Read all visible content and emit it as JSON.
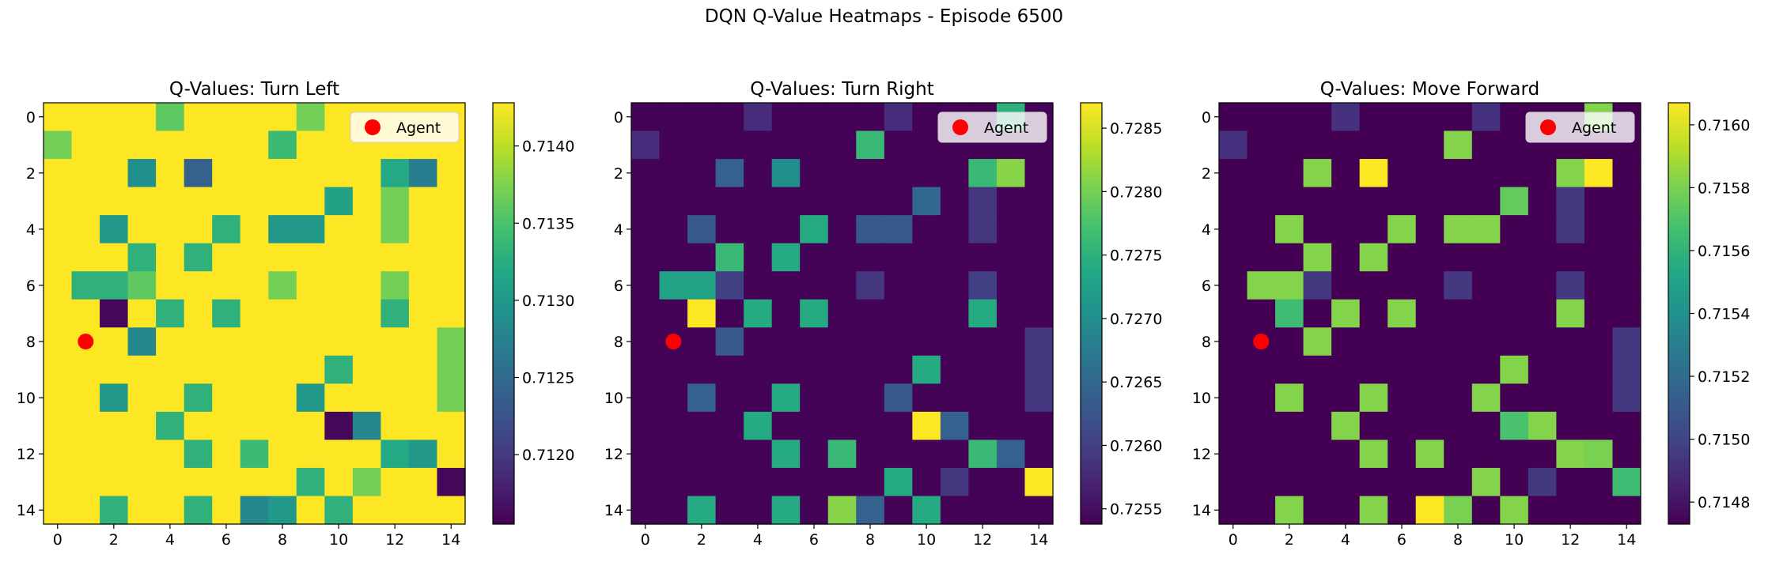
{
  "figure": {
    "suptitle": "DQN Q-Value Heatmaps - Episode 6500"
  },
  "legend": {
    "label": "Agent",
    "marker_color": "#ff0000"
  },
  "agent": {
    "x": 1,
    "y": 8
  },
  "chart_data": [
    {
      "type": "heatmap",
      "title": "Q-Values: Turn Left",
      "xlabel": "",
      "ylabel": "",
      "x_ticks": [
        0,
        2,
        4,
        6,
        8,
        10,
        12,
        14
      ],
      "y_ticks": [
        0,
        2,
        4,
        6,
        8,
        10,
        12,
        14
      ],
      "colormap": "viridis",
      "vmin": 0.71155,
      "vmax": 0.71428,
      "colorbar_ticks": [
        0.714,
        0.7135,
        0.713,
        0.7125,
        0.712
      ],
      "colorbar_tick_labels": [
        "0.7140",
        "0.7135",
        "0.7130",
        "0.7125",
        "0.7120"
      ],
      "legend_position": "upper right",
      "grid": false,
      "values": [
        [
          0.7143,
          0.7143,
          0.7143,
          0.7143,
          0.7136,
          0.7143,
          0.7143,
          0.7143,
          0.7143,
          0.7137,
          0.7143,
          0.7143,
          0.7143,
          0.7143,
          0.7143
        ],
        [
          0.7137,
          0.7143,
          0.7143,
          0.7143,
          0.7143,
          0.7143,
          0.7143,
          0.7143,
          0.7134,
          0.7143,
          0.7143,
          0.7143,
          0.7143,
          0.7143,
          0.7143
        ],
        [
          0.7143,
          0.7143,
          0.7143,
          0.7129,
          0.7143,
          0.7124,
          0.7143,
          0.7143,
          0.7143,
          0.7143,
          0.7143,
          0.7143,
          0.7132,
          0.7127,
          0.7143
        ],
        [
          0.7143,
          0.7143,
          0.7143,
          0.7143,
          0.7143,
          0.7143,
          0.7143,
          0.7143,
          0.7143,
          0.7143,
          0.7131,
          0.7143,
          0.7137,
          0.7143,
          0.7143
        ],
        [
          0.7143,
          0.7143,
          0.713,
          0.7143,
          0.7143,
          0.7143,
          0.7133,
          0.7143,
          0.713,
          0.713,
          0.7143,
          0.7143,
          0.7137,
          0.7143,
          0.7143
        ],
        [
          0.7143,
          0.7143,
          0.7143,
          0.7133,
          0.7143,
          0.7133,
          0.7143,
          0.7143,
          0.7143,
          0.7143,
          0.7143,
          0.7143,
          0.7143,
          0.7143,
          0.7143
        ],
        [
          0.7143,
          0.7133,
          0.7133,
          0.7136,
          0.7143,
          0.7143,
          0.7143,
          0.7143,
          0.7137,
          0.7143,
          0.7143,
          0.7143,
          0.7137,
          0.7143,
          0.7143
        ],
        [
          0.7143,
          0.7143,
          0.7116,
          0.7143,
          0.7133,
          0.7143,
          0.7133,
          0.7143,
          0.7143,
          0.7143,
          0.7143,
          0.7143,
          0.7133,
          0.7143,
          0.7143
        ],
        [
          0.7143,
          0.7143,
          0.7143,
          0.7128,
          0.7143,
          0.7143,
          0.7143,
          0.7143,
          0.7143,
          0.7143,
          0.7143,
          0.7143,
          0.7143,
          0.7143,
          0.7137
        ],
        [
          0.7143,
          0.7143,
          0.7143,
          0.7143,
          0.7143,
          0.7143,
          0.7143,
          0.7143,
          0.7143,
          0.7143,
          0.7133,
          0.7143,
          0.7143,
          0.7143,
          0.7137
        ],
        [
          0.7143,
          0.7143,
          0.713,
          0.7143,
          0.7143,
          0.7133,
          0.7143,
          0.7143,
          0.7143,
          0.713,
          0.7143,
          0.7143,
          0.7143,
          0.7143,
          0.7137
        ],
        [
          0.7143,
          0.7143,
          0.7143,
          0.7143,
          0.7133,
          0.7143,
          0.7143,
          0.7143,
          0.7143,
          0.7143,
          0.7116,
          0.7128,
          0.7143,
          0.7143,
          0.7143
        ],
        [
          0.7143,
          0.7143,
          0.7143,
          0.7143,
          0.7143,
          0.7133,
          0.7143,
          0.7134,
          0.7143,
          0.7143,
          0.7143,
          0.7143,
          0.7132,
          0.713,
          0.7143
        ],
        [
          0.7143,
          0.7143,
          0.7143,
          0.7143,
          0.7143,
          0.7143,
          0.7143,
          0.7143,
          0.7143,
          0.7133,
          0.7143,
          0.7137,
          0.7143,
          0.7143,
          0.7116
        ],
        [
          0.7143,
          0.7143,
          0.7133,
          0.7143,
          0.7143,
          0.7133,
          0.7143,
          0.7128,
          0.713,
          0.7143,
          0.7133,
          0.7143,
          0.7143,
          0.7143,
          0.7143
        ]
      ]
    },
    {
      "type": "heatmap",
      "title": "Q-Values: Turn Right",
      "xlabel": "",
      "ylabel": "",
      "x_ticks": [
        0,
        2,
        4,
        6,
        8,
        10,
        12,
        14
      ],
      "y_ticks": [
        0,
        2,
        4,
        6,
        8,
        10,
        12,
        14
      ],
      "colormap": "viridis",
      "vmin": 0.72538,
      "vmax": 0.7287,
      "colorbar_ticks": [
        0.7285,
        0.728,
        0.7275,
        0.727,
        0.7265,
        0.726,
        0.7255
      ],
      "colorbar_tick_labels": [
        "0.7285",
        "0.7280",
        "0.7275",
        "0.7270",
        "0.7265",
        "0.7260",
        "0.7255"
      ],
      "legend_position": "upper right",
      "grid": false,
      "values": [
        [
          0.7254,
          0.7254,
          0.7254,
          0.7254,
          0.7258,
          0.7254,
          0.7254,
          0.7254,
          0.7254,
          0.7258,
          0.7254,
          0.7254,
          0.7254,
          0.7275,
          0.7254
        ],
        [
          0.7258,
          0.7254,
          0.7254,
          0.7254,
          0.7254,
          0.7254,
          0.7254,
          0.7254,
          0.7276,
          0.7254,
          0.7254,
          0.7254,
          0.7254,
          0.7254,
          0.7254
        ],
        [
          0.7254,
          0.7254,
          0.7254,
          0.7264,
          0.7254,
          0.727,
          0.7254,
          0.7254,
          0.7254,
          0.7254,
          0.7254,
          0.7254,
          0.7276,
          0.7281,
          0.7254
        ],
        [
          0.7254,
          0.7254,
          0.7254,
          0.7254,
          0.7254,
          0.7254,
          0.7254,
          0.7254,
          0.7254,
          0.7254,
          0.7265,
          0.7254,
          0.7259,
          0.7254,
          0.7254
        ],
        [
          0.7254,
          0.7254,
          0.7263,
          0.7254,
          0.7254,
          0.7254,
          0.7274,
          0.7254,
          0.7263,
          0.7263,
          0.7254,
          0.7254,
          0.7259,
          0.7254,
          0.7254
        ],
        [
          0.7254,
          0.7254,
          0.7254,
          0.7276,
          0.7254,
          0.7274,
          0.7254,
          0.7254,
          0.7254,
          0.7254,
          0.7254,
          0.7254,
          0.7254,
          0.7254,
          0.7254
        ],
        [
          0.7254,
          0.7273,
          0.7273,
          0.726,
          0.7254,
          0.7254,
          0.7254,
          0.7254,
          0.7259,
          0.7254,
          0.7254,
          0.7254,
          0.726,
          0.7254,
          0.7254
        ],
        [
          0.7254,
          0.7254,
          0.7287,
          0.7254,
          0.7274,
          0.7254,
          0.7274,
          0.7254,
          0.7254,
          0.7254,
          0.7254,
          0.7254,
          0.7274,
          0.7254,
          0.7254
        ],
        [
          0.7254,
          0.7254,
          0.7254,
          0.7263,
          0.7254,
          0.7254,
          0.7254,
          0.7254,
          0.7254,
          0.7254,
          0.7254,
          0.7254,
          0.7254,
          0.7254,
          0.7259
        ],
        [
          0.7254,
          0.7254,
          0.7254,
          0.7254,
          0.7254,
          0.7254,
          0.7254,
          0.7254,
          0.7254,
          0.7254,
          0.7274,
          0.7254,
          0.7254,
          0.7254,
          0.7259
        ],
        [
          0.7254,
          0.7254,
          0.7264,
          0.7254,
          0.7254,
          0.7274,
          0.7254,
          0.7254,
          0.7254,
          0.7263,
          0.7254,
          0.7254,
          0.7254,
          0.7254,
          0.7259
        ],
        [
          0.7254,
          0.7254,
          0.7254,
          0.7254,
          0.7274,
          0.7254,
          0.7254,
          0.7254,
          0.7254,
          0.7254,
          0.7287,
          0.7264,
          0.7254,
          0.7254,
          0.7254
        ],
        [
          0.7254,
          0.7254,
          0.7254,
          0.7254,
          0.7254,
          0.7274,
          0.7254,
          0.7276,
          0.7254,
          0.7254,
          0.7254,
          0.7254,
          0.7276,
          0.7264,
          0.7254
        ],
        [
          0.7254,
          0.7254,
          0.7254,
          0.7254,
          0.7254,
          0.7254,
          0.7254,
          0.7254,
          0.7254,
          0.7274,
          0.7254,
          0.7259,
          0.7254,
          0.7254,
          0.7287
        ],
        [
          0.7254,
          0.7254,
          0.7274,
          0.7254,
          0.7254,
          0.7274,
          0.7254,
          0.7281,
          0.7264,
          0.7254,
          0.7274,
          0.7254,
          0.7254,
          0.7254,
          0.7254
        ]
      ]
    },
    {
      "type": "heatmap",
      "title": "Q-Values: Move Forward",
      "xlabel": "",
      "ylabel": "",
      "x_ticks": [
        0,
        2,
        4,
        6,
        8,
        10,
        12,
        14
      ],
      "y_ticks": [
        0,
        2,
        4,
        6,
        8,
        10,
        12,
        14
      ],
      "colormap": "viridis",
      "vmin": 0.71473,
      "vmax": 0.71607,
      "colorbar_ticks": [
        0.716,
        0.7158,
        0.7156,
        0.7154,
        0.7152,
        0.715,
        0.7148
      ],
      "colorbar_tick_labels": [
        "0.7160",
        "0.7158",
        "0.7156",
        "0.7154",
        "0.7152",
        "0.7150",
        "0.7148"
      ],
      "legend_position": "upper right",
      "grid": false,
      "values": [
        [
          0.71473,
          0.71473,
          0.71473,
          0.71473,
          0.71492,
          0.71473,
          0.71473,
          0.71473,
          0.71473,
          0.71492,
          0.71473,
          0.71473,
          0.71473,
          0.71582,
          0.71473
        ],
        [
          0.71492,
          0.71473,
          0.71473,
          0.71473,
          0.71473,
          0.71473,
          0.71473,
          0.71473,
          0.71582,
          0.71473,
          0.71473,
          0.71473,
          0.71473,
          0.71473,
          0.71473
        ],
        [
          0.71473,
          0.71473,
          0.71473,
          0.71582,
          0.71473,
          0.71607,
          0.71473,
          0.71473,
          0.71473,
          0.71473,
          0.71473,
          0.71473,
          0.71582,
          0.71607,
          0.71473
        ],
        [
          0.71473,
          0.71473,
          0.71473,
          0.71473,
          0.71473,
          0.71473,
          0.71473,
          0.71473,
          0.71473,
          0.71473,
          0.71575,
          0.71473,
          0.71495,
          0.71473,
          0.71473
        ],
        [
          0.71473,
          0.71473,
          0.71582,
          0.71473,
          0.71473,
          0.71473,
          0.71582,
          0.71473,
          0.71582,
          0.71582,
          0.71473,
          0.71473,
          0.71495,
          0.71473,
          0.71473
        ],
        [
          0.71473,
          0.71473,
          0.71473,
          0.71582,
          0.71473,
          0.71582,
          0.71473,
          0.71473,
          0.71473,
          0.71473,
          0.71473,
          0.71473,
          0.71473,
          0.71473,
          0.71473
        ],
        [
          0.71473,
          0.71582,
          0.71582,
          0.71495,
          0.71473,
          0.71473,
          0.71473,
          0.71473,
          0.71495,
          0.71473,
          0.71473,
          0.71473,
          0.71495,
          0.71473,
          0.71473
        ],
        [
          0.71473,
          0.71473,
          0.71565,
          0.71473,
          0.71582,
          0.71473,
          0.71582,
          0.71473,
          0.71473,
          0.71473,
          0.71473,
          0.71473,
          0.71582,
          0.71473,
          0.71473
        ],
        [
          0.71473,
          0.71473,
          0.71473,
          0.71582,
          0.71473,
          0.71473,
          0.71473,
          0.71473,
          0.71473,
          0.71473,
          0.71473,
          0.71473,
          0.71473,
          0.71473,
          0.71495
        ],
        [
          0.71473,
          0.71473,
          0.71473,
          0.71473,
          0.71473,
          0.71473,
          0.71473,
          0.71473,
          0.71473,
          0.71473,
          0.71582,
          0.71473,
          0.71473,
          0.71473,
          0.71495
        ],
        [
          0.71473,
          0.71473,
          0.71582,
          0.71473,
          0.71473,
          0.71582,
          0.71473,
          0.71473,
          0.71473,
          0.71582,
          0.71473,
          0.71473,
          0.71473,
          0.71473,
          0.71495
        ],
        [
          0.71473,
          0.71473,
          0.71473,
          0.71473,
          0.71582,
          0.71473,
          0.71473,
          0.71473,
          0.71473,
          0.71473,
          0.71568,
          0.71582,
          0.71473,
          0.71473,
          0.71473
        ],
        [
          0.71473,
          0.71473,
          0.71473,
          0.71473,
          0.71473,
          0.71582,
          0.71473,
          0.71582,
          0.71473,
          0.71473,
          0.71473,
          0.71473,
          0.71582,
          0.7158,
          0.71473
        ],
        [
          0.71473,
          0.71473,
          0.71473,
          0.71473,
          0.71473,
          0.71473,
          0.71473,
          0.71473,
          0.71473,
          0.71582,
          0.71473,
          0.71495,
          0.71473,
          0.71473,
          0.71565
        ],
        [
          0.71473,
          0.71473,
          0.71582,
          0.71473,
          0.71473,
          0.71582,
          0.71473,
          0.71607,
          0.7158,
          0.71473,
          0.71582,
          0.71473,
          0.71473,
          0.71473,
          0.71473
        ]
      ]
    }
  ]
}
